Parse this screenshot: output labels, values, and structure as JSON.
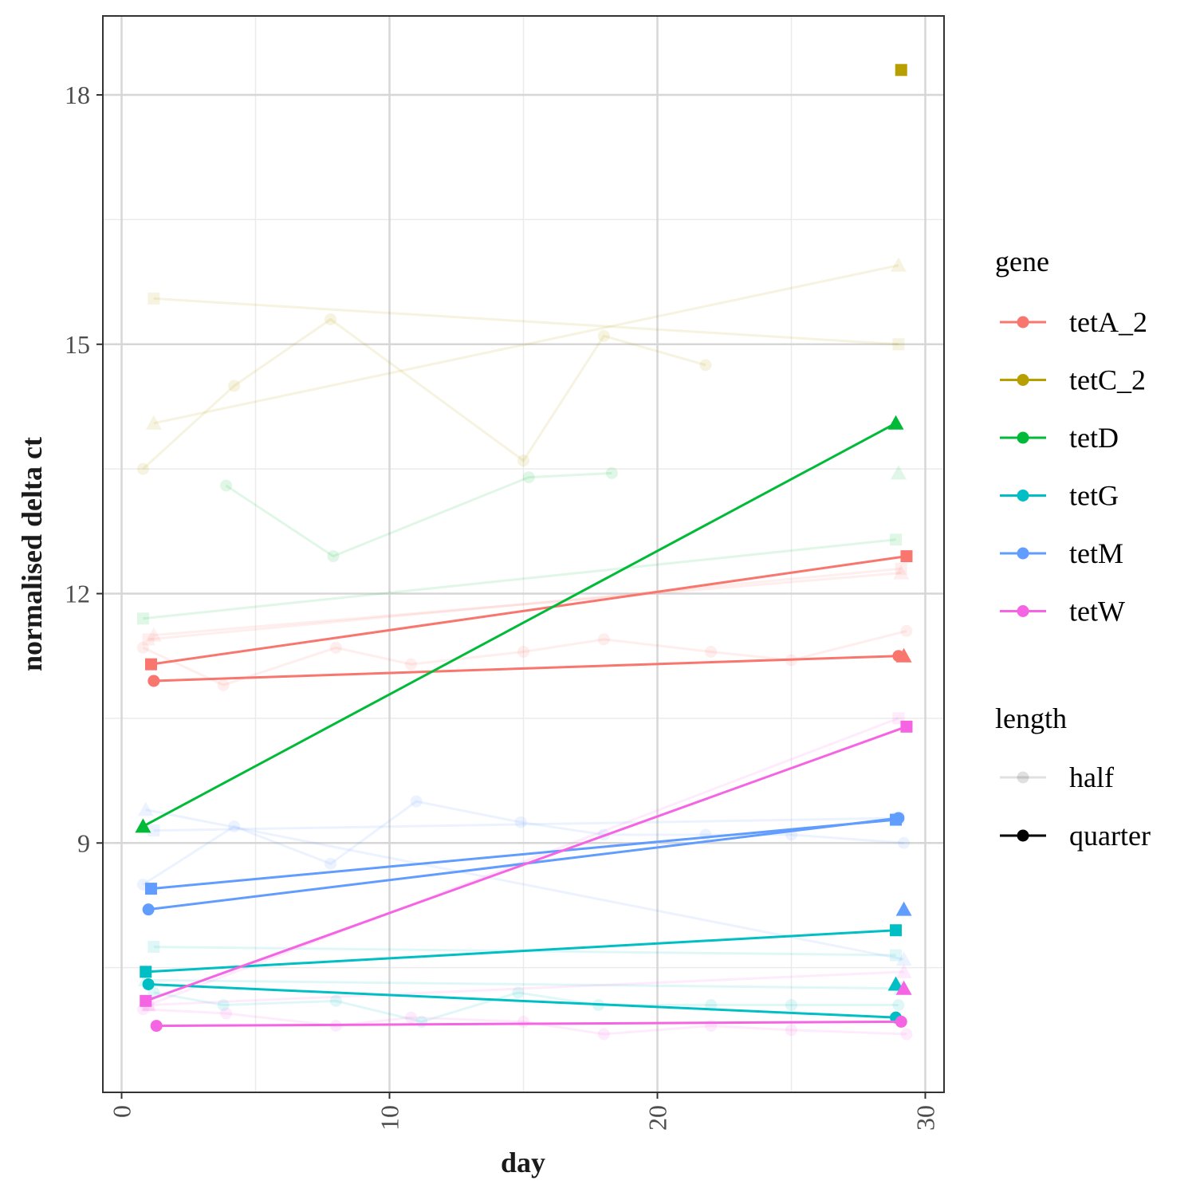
{
  "chart_data": {
    "type": "line",
    "title": "",
    "xlabel": "day",
    "ylabel": "normalised delta ct",
    "xlim": [
      -0.7,
      30.7
    ],
    "ylim": [
      6.0,
      18.95
    ],
    "x_ticks": [
      0,
      10,
      20,
      30
    ],
    "y_ticks": [
      9,
      12,
      15,
      18
    ],
    "grid": true,
    "legend_position": "right",
    "legend": {
      "gene_title": "gene",
      "genes": [
        {
          "name": "tetA_2",
          "color": "#F8766D"
        },
        {
          "name": "tetC_2",
          "color": "#B79F00"
        },
        {
          "name": "tetD",
          "color": "#00BA38"
        },
        {
          "name": "tetG",
          "color": "#00BFC4"
        },
        {
          "name": "tetM",
          "color": "#619CFF"
        },
        {
          "name": "tetW",
          "color": "#F564E3"
        }
      ],
      "length_title": "length",
      "lengths": [
        "half",
        "quarter"
      ]
    },
    "series": [
      {
        "gene": "tetA_2",
        "length": "quarter",
        "marker": "square",
        "points": [
          [
            1.1,
            11.15
          ],
          [
            29.3,
            12.45
          ]
        ]
      },
      {
        "gene": "tetA_2",
        "length": "quarter",
        "marker": "circle",
        "points": [
          [
            1.2,
            10.95
          ],
          [
            29.0,
            11.25
          ]
        ]
      },
      {
        "gene": "tetA_2",
        "length": "quarter",
        "marker": "triangle",
        "points": [
          [
            29.2,
            11.25
          ]
        ]
      },
      {
        "gene": "tetA_2",
        "length": "half",
        "marker": "circle",
        "points": [
          [
            0.8,
            11.35
          ],
          [
            3.8,
            10.9
          ],
          [
            8.0,
            11.35
          ],
          [
            10.8,
            11.15
          ],
          [
            15.0,
            11.3
          ],
          [
            18.0,
            11.45
          ],
          [
            22.0,
            11.3
          ],
          [
            25.0,
            11.2
          ],
          [
            29.3,
            11.55
          ]
        ]
      },
      {
        "gene": "tetA_2",
        "length": "half",
        "marker": "square",
        "points": [
          [
            1.0,
            11.45
          ],
          [
            29.1,
            12.3
          ]
        ]
      },
      {
        "gene": "tetA_2",
        "length": "half",
        "marker": "triangle",
        "points": [
          [
            1.2,
            11.5
          ],
          [
            29.1,
            12.25
          ]
        ]
      },
      {
        "gene": "tetC_2",
        "length": "quarter",
        "marker": "square",
        "points": [
          [
            29.1,
            18.3
          ]
        ]
      },
      {
        "gene": "tetC_2",
        "length": "half",
        "marker": "circle",
        "points": [
          [
            0.8,
            13.5
          ],
          [
            4.2,
            14.5
          ],
          [
            7.8,
            15.3
          ],
          [
            15.0,
            13.6
          ],
          [
            18.0,
            15.1
          ],
          [
            21.8,
            14.75
          ]
        ]
      },
      {
        "gene": "tetC_2",
        "length": "half",
        "marker": "square",
        "points": [
          [
            1.2,
            15.55
          ],
          [
            29.0,
            15.0
          ]
        ]
      },
      {
        "gene": "tetC_2",
        "length": "half",
        "marker": "triangle",
        "points": [
          [
            1.2,
            14.05
          ],
          [
            29.0,
            15.95
          ]
        ]
      },
      {
        "gene": "tetD",
        "length": "quarter",
        "marker": "triangle",
        "points": [
          [
            0.8,
            9.2
          ],
          [
            28.9,
            14.05
          ]
        ]
      },
      {
        "gene": "tetD",
        "length": "half",
        "marker": "circle",
        "points": [
          [
            3.9,
            13.3
          ],
          [
            7.9,
            12.45
          ],
          [
            15.2,
            13.4
          ],
          [
            18.3,
            13.45
          ]
        ]
      },
      {
        "gene": "tetD",
        "length": "half",
        "marker": "square",
        "points": [
          [
            0.8,
            11.7
          ],
          [
            28.9,
            12.65
          ]
        ]
      },
      {
        "gene": "tetD",
        "length": "half",
        "marker": "triangle",
        "points": [
          [
            29.0,
            13.45
          ]
        ]
      },
      {
        "gene": "tetG",
        "length": "quarter",
        "marker": "square",
        "points": [
          [
            0.9,
            7.45
          ],
          [
            28.9,
            7.95
          ]
        ]
      },
      {
        "gene": "tetG",
        "length": "quarter",
        "marker": "circle",
        "points": [
          [
            1.0,
            7.3
          ],
          [
            28.9,
            6.9
          ]
        ]
      },
      {
        "gene": "tetG",
        "length": "quarter",
        "marker": "triangle",
        "points": [
          [
            28.9,
            7.3
          ]
        ]
      },
      {
        "gene": "tetG",
        "length": "half",
        "marker": "circle",
        "points": [
          [
            1.2,
            7.2
          ],
          [
            3.8,
            7.05
          ],
          [
            8.0,
            7.1
          ],
          [
            11.2,
            6.85
          ],
          [
            14.8,
            7.2
          ],
          [
            17.8,
            7.05
          ],
          [
            22.0,
            7.05
          ],
          [
            25.0,
            7.05
          ],
          [
            29.0,
            7.05
          ]
        ]
      },
      {
        "gene": "tetG",
        "length": "half",
        "marker": "square",
        "points": [
          [
            1.2,
            7.75
          ],
          [
            28.9,
            7.65
          ]
        ]
      },
      {
        "gene": "tetG",
        "length": "half",
        "marker": "triangle",
        "points": [
          [
            0.9,
            7.35
          ],
          [
            29.1,
            7.25
          ]
        ]
      },
      {
        "gene": "tetM",
        "length": "quarter",
        "marker": "square",
        "points": [
          [
            1.1,
            8.45
          ],
          [
            28.9,
            9.28
          ]
        ]
      },
      {
        "gene": "tetM",
        "length": "quarter",
        "marker": "circle",
        "points": [
          [
            1.0,
            8.2
          ],
          [
            29.0,
            9.3
          ]
        ]
      },
      {
        "gene": "tetM",
        "length": "quarter",
        "marker": "triangle",
        "points": [
          [
            29.2,
            8.2
          ]
        ]
      },
      {
        "gene": "tetM",
        "length": "half",
        "marker": "circle",
        "points": [
          [
            0.8,
            8.5
          ],
          [
            4.2,
            9.2
          ],
          [
            7.8,
            8.75
          ],
          [
            11.0,
            9.5
          ],
          [
            14.9,
            9.25
          ],
          [
            18.0,
            9.1
          ],
          [
            21.8,
            9.1
          ],
          [
            25.0,
            9.1
          ],
          [
            29.2,
            9.0
          ]
        ]
      },
      {
        "gene": "tetM",
        "length": "half",
        "marker": "square",
        "points": [
          [
            1.2,
            9.15
          ],
          [
            29.0,
            9.3
          ]
        ]
      },
      {
        "gene": "tetM",
        "length": "half",
        "marker": "triangle",
        "points": [
          [
            0.9,
            9.4
          ],
          [
            29.2,
            7.6
          ]
        ]
      },
      {
        "gene": "tetW",
        "length": "quarter",
        "marker": "square",
        "points": [
          [
            0.9,
            7.1
          ],
          [
            29.3,
            10.4
          ]
        ]
      },
      {
        "gene": "tetW",
        "length": "quarter",
        "marker": "circle",
        "points": [
          [
            1.3,
            6.8
          ],
          [
            29.1,
            6.85
          ]
        ]
      },
      {
        "gene": "tetW",
        "length": "quarter",
        "marker": "triangle",
        "points": [
          [
            29.2,
            7.25
          ]
        ]
      },
      {
        "gene": "tetW",
        "length": "half",
        "marker": "circle",
        "points": [
          [
            0.8,
            7.0
          ],
          [
            3.9,
            6.95
          ],
          [
            8.0,
            6.8
          ],
          [
            10.8,
            6.9
          ],
          [
            15.0,
            6.85
          ],
          [
            18.0,
            6.7
          ],
          [
            22.0,
            6.8
          ],
          [
            25.0,
            6.75
          ],
          [
            29.3,
            6.7
          ]
        ]
      },
      {
        "gene": "tetW",
        "length": "half",
        "marker": "square",
        "points": [
          [
            1.0,
            7.05
          ],
          [
            29.0,
            10.5
          ]
        ]
      },
      {
        "gene": "tetW",
        "length": "half",
        "marker": "triangle",
        "points": [
          [
            1.0,
            7.05
          ],
          [
            29.2,
            7.45
          ]
        ]
      }
    ]
  }
}
